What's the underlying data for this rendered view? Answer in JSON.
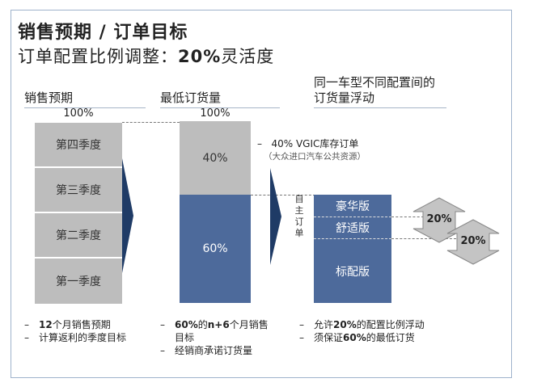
{
  "title_line1": "销售预期 / 订单目标",
  "title_line2_prefix": "订单配置比例调整：",
  "title_line2_bold": "20%",
  "title_line2_suffix": "灵活度",
  "columns": {
    "sales": {
      "header": "销售预期",
      "total": "100%",
      "quarters": [
        "第四季度",
        "第三季度",
        "第二季度",
        "第一季度"
      ],
      "bullets": [
        {
          "bold": "12",
          "text": "个月销售预期"
        },
        {
          "bold": "",
          "text": "计算返利的季度目标"
        }
      ]
    },
    "min_order": {
      "header": "最低订货量",
      "total": "100%",
      "top_segment": "40%",
      "bottom_segment": "60%",
      "bullets": [
        {
          "bold": "60%",
          "text": "的",
          "bold2": "n+6",
          "text2": "个月销售",
          "cont": "目标"
        },
        {
          "bold": "",
          "text": "经销商承诺订货量"
        }
      ]
    },
    "variants": {
      "header_line1": "同一车型不同配置间的",
      "header_line2": "订货量浮动",
      "versions": [
        "豪华版",
        "舒适版",
        "标配版"
      ],
      "float_top": "20%",
      "float_bottom": "20%",
      "bullets": [
        {
          "pre": "允许",
          "bold": "20%",
          "text": "的配置比例浮动"
        },
        {
          "pre": "须保证",
          "bold": "60%",
          "text": "的最低订货"
        }
      ]
    }
  },
  "vgic_note": "40% VGIC库存订单",
  "vgic_sub": "（大众进口汽车公共资源）",
  "self_order_label": [
    "自",
    "主",
    "订",
    "单"
  ],
  "colors": {
    "blue": "#4d6a9b",
    "gray": "#bdbdbd",
    "arrow": "#1f3b66",
    "badge": "#c4c4c4"
  }
}
